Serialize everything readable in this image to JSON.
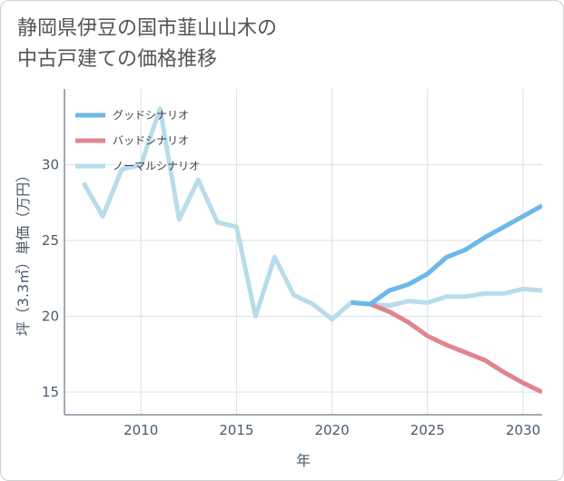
{
  "title_line1": "静岡県伊豆の国市韮山山木の",
  "title_line2": "中古戸建ての価格推移",
  "chart_data": {
    "type": "line",
    "xlabel": "年",
    "ylabel": "坪（3.3㎡）単価（万円）",
    "xlim": [
      2006,
      2031
    ],
    "ylim": [
      13.5,
      35
    ],
    "x_ticks": [
      2010,
      2015,
      2020,
      2025,
      2030
    ],
    "y_ticks": [
      15,
      20,
      25,
      30
    ],
    "grid": true,
    "legend_position": "top-left",
    "series": [
      {
        "name": "グッドシナリオ",
        "color": "#6cb8ea",
        "x": [
          2021,
          2022,
          2023,
          2024,
          2025,
          2026,
          2027,
          2028,
          2029,
          2030,
          2031
        ],
        "y": [
          20.9,
          20.8,
          21.7,
          22.1,
          22.8,
          23.9,
          24.4,
          25.2,
          25.9,
          26.6,
          27.3
        ]
      },
      {
        "name": "バッドシナリオ",
        "color": "#e0858f",
        "x": [
          2021,
          2022,
          2023,
          2024,
          2025,
          2026,
          2027,
          2028,
          2029,
          2030,
          2031
        ],
        "y": [
          20.9,
          20.8,
          20.3,
          19.6,
          18.7,
          18.1,
          17.6,
          17.1,
          16.3,
          15.6,
          15.0
        ]
      },
      {
        "name": "ノーマルシナリオ",
        "color": "#b8dcea",
        "x": [
          2007,
          2008,
          2009,
          2010,
          2011,
          2012,
          2013,
          2014,
          2015,
          2016,
          2017,
          2018,
          2019,
          2020,
          2021,
          2022,
          2023,
          2024,
          2025,
          2026,
          2027,
          2028,
          2029,
          2030,
          2031
        ],
        "y": [
          28.8,
          26.6,
          29.7,
          30.0,
          33.7,
          26.4,
          29.0,
          26.2,
          25.9,
          20.0,
          23.9,
          21.4,
          20.8,
          19.8,
          20.9,
          20.8,
          20.7,
          21.0,
          20.9,
          21.3,
          21.3,
          21.5,
          21.5,
          21.8,
          21.7
        ]
      }
    ]
  }
}
